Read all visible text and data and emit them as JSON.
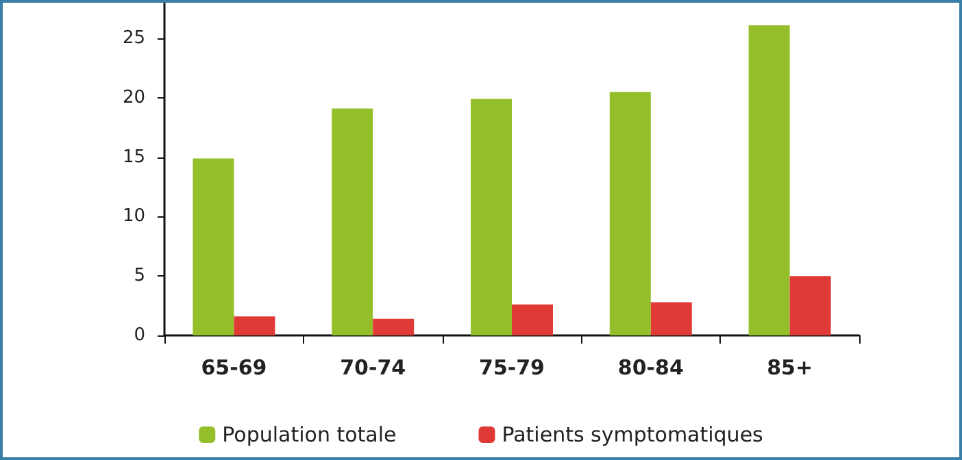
{
  "chart_data": {
    "type": "bar",
    "categories": [
      "65-69",
      "70-74",
      "75-79",
      "80-84",
      "85+"
    ],
    "series": [
      {
        "name": "Population totale",
        "color": "#95bf2a",
        "values": [
          14.9,
          19.1,
          19.9,
          20.5,
          26.1
        ]
      },
      {
        "name": "Patients symptomatiques",
        "color": "#e03a37",
        "values": [
          1.6,
          1.4,
          2.6,
          2.8,
          5.0
        ]
      }
    ],
    "ylim": [
      0,
      28
    ],
    "yticks": [
      0,
      5,
      10,
      15,
      20,
      25
    ],
    "grid": false,
    "legend": "bottom"
  }
}
